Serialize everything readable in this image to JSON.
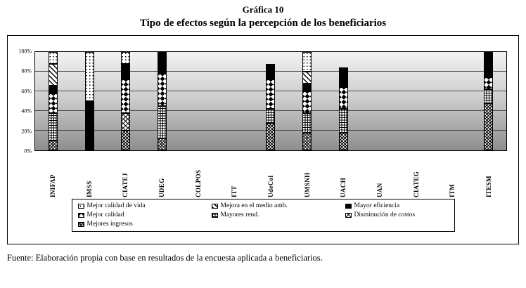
{
  "page": {
    "title": "Gráfica 10",
    "subtitle": "Tipo de efectos según la percepción de los beneficiarios",
    "source": "Fuente: Elaboración propia con base en resultados de la encuesta aplicada a beneficiarios."
  },
  "chart_data": {
    "type": "bar",
    "stacked": true,
    "title": "Gráfica 10",
    "subtitle": "Tipo de efectos según la percepción de los beneficiarios",
    "xlabel": "",
    "ylabel": "",
    "ylim": [
      0,
      100
    ],
    "ytick_step": 20,
    "ytick_suffix": "%",
    "grid": true,
    "legend_position": "bottom",
    "categories": [
      "INIFAP",
      "IMSS",
      "CIATEJ",
      "UDEG",
      "COLPOS",
      "ITT",
      "UdeCol",
      "UMSNH",
      "UACH",
      "UAN",
      "CIATEG",
      "ITM",
      "ITESM"
    ],
    "series": [
      {
        "name": "Mejor calidad de vida",
        "pattern": "dots",
        "values": [
          12,
          50,
          12,
          0,
          0,
          0,
          0,
          20,
          0,
          0,
          0,
          0,
          0
        ]
      },
      {
        "name": "Mejora en el medio amb.",
        "pattern": "diag",
        "values": [
          22,
          0,
          0,
          0,
          0,
          0,
          0,
          12,
          0,
          0,
          0,
          0,
          0
        ]
      },
      {
        "name": "Mayor eficiencia",
        "pattern": "solid",
        "values": [
          8,
          50,
          16,
          22,
          0,
          0,
          16,
          8,
          20,
          0,
          0,
          0,
          26
        ]
      },
      {
        "name": "Mejor calidad",
        "pattern": "diamonds",
        "values": [
          20,
          0,
          34,
          33,
          0,
          0,
          30,
          22,
          22,
          0,
          0,
          0,
          12
        ]
      },
      {
        "name": "Mayores rend.",
        "pattern": "grid",
        "values": [
          28,
          0,
          0,
          33,
          0,
          0,
          14,
          20,
          24,
          0,
          0,
          0,
          14
        ]
      },
      {
        "name": "Disminución de costos",
        "pattern": "crosshatch",
        "values": [
          0,
          0,
          18,
          0,
          0,
          0,
          0,
          0,
          0,
          0,
          0,
          0,
          0
        ]
      },
      {
        "name": "Mejores ingresos",
        "pattern": "fine",
        "values": [
          10,
          0,
          20,
          12,
          0,
          0,
          28,
          18,
          18,
          0,
          0,
          0,
          48
        ]
      }
    ],
    "stack_order_bottom_to_top": [
      "Mejores ingresos",
      "Disminución de costos",
      "Mayores rend.",
      "Mejor calidad",
      "Mayor eficiencia",
      "Mejora en el medio amb.",
      "Mejor calidad de vida"
    ]
  }
}
